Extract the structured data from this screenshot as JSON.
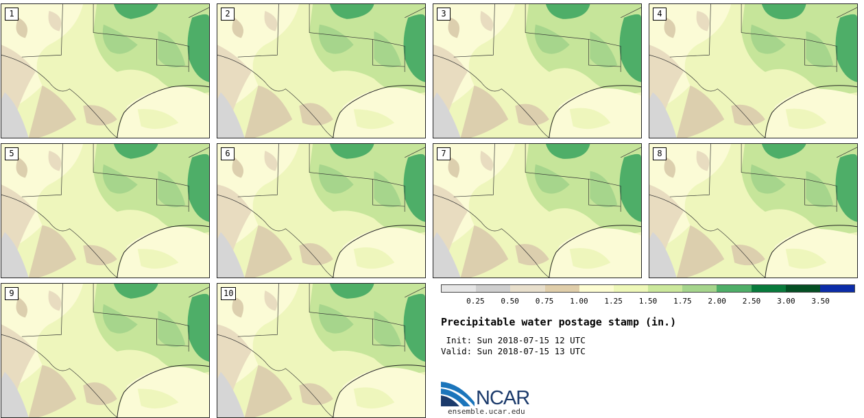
{
  "panels": [
    {
      "id": "1",
      "label": "1"
    },
    {
      "id": "2",
      "label": "2"
    },
    {
      "id": "3",
      "label": "3"
    },
    {
      "id": "4",
      "label": "4"
    },
    {
      "id": "5",
      "label": "5"
    },
    {
      "id": "6",
      "label": "6"
    },
    {
      "id": "7",
      "label": "7"
    },
    {
      "id": "8",
      "label": "8"
    },
    {
      "id": "9",
      "label": "9"
    },
    {
      "id": "10",
      "label": "10"
    }
  ],
  "colorbar": {
    "colors": [
      "#e6e6e6",
      "#cfcfcf",
      "#e8dfcc",
      "#e0ceaa",
      "#fdfdd2",
      "#eef8b8",
      "#cbe89c",
      "#a5d58c",
      "#4eae68",
      "#087a3c",
      "#044f24",
      "#0b2ca8"
    ],
    "labels": [
      "0.25",
      "0.50",
      "0.75",
      "1.00",
      "1.25",
      "1.50",
      "1.75",
      "2.00",
      "2.50",
      "3.00",
      "3.50"
    ]
  },
  "title": "Precipitable water postage stamp (in.)",
  "init_line": " Init: Sun 2018-07-15 12 UTC",
  "valid_line": "Valid: Sun 2018-07-15 13 UTC",
  "logo": {
    "text": "NCAR",
    "url": "ensemble.ucar.edu",
    "colors": [
      "#1b75bb",
      "#1b3a6b"
    ]
  }
}
